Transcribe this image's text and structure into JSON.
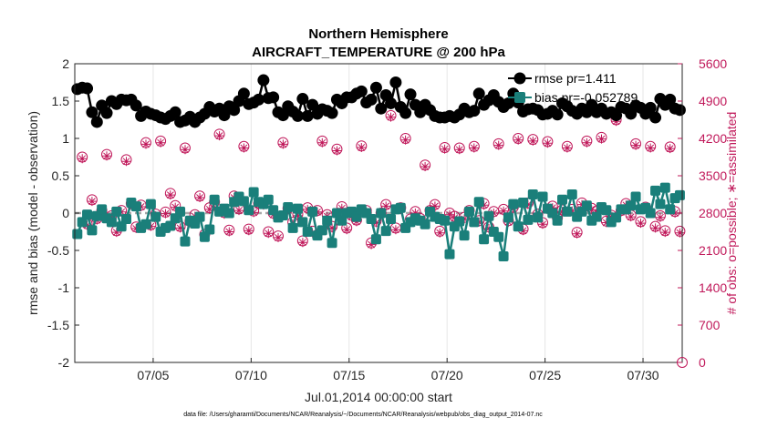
{
  "chart_data": {
    "type": "line",
    "title": "Northern Hemisphere",
    "subtitle": "AIRCRAFT_TEMPERATURE @ 200 hPa",
    "xlabel": "Jul.01,2014 00:00:00 start",
    "ylabel": "rmse and bias (model - observation)",
    "ylabel_right": "# of obs: o=possible; ∗=assimilated",
    "footnote": "data file: /Users/gharamti/Documents/NCAR/Reanalysis/~/Documents/NCAR/Reanalysis/webpub/obs_diag_output_2014-07.nc",
    "xlim": [
      1.0,
      32.0
    ],
    "ylim": [
      -2,
      2
    ],
    "ylim_right": [
      0,
      5600
    ],
    "x_ticks": [
      5,
      10,
      15,
      20,
      25,
      30
    ],
    "x_tick_labels": [
      "07/05",
      "07/10",
      "07/15",
      "07/20",
      "07/25",
      "07/30"
    ],
    "y_ticks": [
      "-2",
      "-1.5",
      "-1",
      "-0.5",
      "0",
      "0.5",
      "1",
      "1.5",
      "2"
    ],
    "y_ticks_right": [
      "0",
      "700",
      "1400",
      "2100",
      "2800",
      "3500",
      "4200",
      "4900",
      "5600"
    ],
    "legend_position": "top-right",
    "colors": {
      "rmse": "#000000",
      "bias": "#1a7f7a",
      "counts": "#c0185a",
      "zero_line": "#a8a8a8"
    },
    "series": [
      {
        "name": "rmse",
        "label": "rmse pr=1.411",
        "axis": "left",
        "x": [
          1.13,
          1.38,
          1.63,
          1.88,
          2.13,
          2.38,
          2.63,
          2.88,
          3.13,
          3.38,
          3.63,
          3.88,
          4.13,
          4.38,
          4.63,
          4.88,
          5.13,
          5.38,
          5.63,
          5.88,
          6.13,
          6.38,
          6.63,
          6.88,
          7.13,
          7.38,
          7.63,
          7.88,
          8.13,
          8.38,
          8.63,
          8.88,
          9.13,
          9.38,
          9.63,
          9.88,
          10.13,
          10.38,
          10.63,
          10.88,
          11.13,
          11.38,
          11.63,
          11.88,
          12.13,
          12.38,
          12.63,
          12.88,
          13.13,
          13.38,
          13.63,
          13.88,
          14.13,
          14.38,
          14.63,
          14.88,
          15.13,
          15.38,
          15.63,
          15.88,
          16.13,
          16.38,
          16.63,
          16.88,
          17.13,
          17.38,
          17.63,
          17.88,
          18.13,
          18.38,
          18.63,
          18.88,
          19.13,
          19.38,
          19.63,
          19.88,
          20.13,
          20.38,
          20.63,
          20.88,
          21.13,
          21.38,
          21.63,
          21.88,
          22.13,
          22.38,
          22.63,
          22.88,
          23.13,
          23.38,
          23.63,
          23.88,
          24.13,
          24.38,
          24.63,
          24.88,
          25.13,
          25.38,
          25.63,
          25.88,
          26.13,
          26.38,
          26.63,
          26.88,
          27.13,
          27.38,
          27.63,
          27.88,
          28.13,
          28.38,
          28.63,
          28.88,
          29.13,
          29.38,
          29.63,
          29.88,
          30.13,
          30.38,
          30.63,
          30.88,
          31.13,
          31.38,
          31.63,
          31.88
        ],
        "values": [
          1.66,
          1.68,
          1.67,
          1.35,
          1.22,
          1.44,
          1.34,
          1.5,
          1.46,
          1.52,
          1.51,
          1.52,
          1.44,
          1.3,
          1.36,
          1.33,
          1.31,
          1.28,
          1.26,
          1.3,
          1.35,
          1.22,
          1.24,
          1.29,
          1.22,
          1.28,
          1.33,
          1.42,
          1.36,
          1.4,
          1.31,
          1.43,
          1.38,
          1.5,
          1.6,
          1.46,
          1.48,
          1.52,
          1.78,
          1.54,
          1.55,
          1.35,
          1.31,
          1.43,
          1.36,
          1.3,
          1.53,
          1.3,
          1.45,
          1.33,
          1.39,
          1.37,
          1.34,
          1.52,
          1.47,
          1.55,
          1.55,
          1.6,
          1.63,
          1.48,
          1.52,
          1.68,
          1.4,
          1.58,
          1.47,
          1.75,
          1.42,
          1.34,
          1.59,
          1.45,
          1.35,
          1.45,
          1.38,
          1.3,
          1.28,
          1.28,
          1.3,
          1.28,
          1.32,
          1.4,
          1.35,
          1.37,
          1.6,
          1.45,
          1.51,
          1.58,
          1.49,
          1.42,
          1.47,
          1.6,
          1.48,
          1.36,
          1.39,
          1.4,
          1.38,
          1.32,
          1.33,
          1.37,
          1.32,
          1.47,
          1.43,
          1.37,
          1.33,
          1.4,
          1.35,
          1.45,
          1.35,
          1.4,
          1.33,
          1.35,
          1.31,
          1.42,
          1.4,
          1.33,
          1.44,
          1.41,
          1.33,
          1.41,
          1.28,
          1.53,
          1.45,
          1.52,
          1.4,
          1.38
        ]
      },
      {
        "name": "bias",
        "label": "bias pr=-0.052789",
        "axis": "left",
        "x": [
          1.13,
          1.38,
          1.63,
          1.88,
          2.13,
          2.38,
          2.63,
          2.88,
          3.13,
          3.38,
          3.63,
          3.88,
          4.13,
          4.38,
          4.63,
          4.88,
          5.13,
          5.38,
          5.63,
          5.88,
          6.13,
          6.38,
          6.63,
          6.88,
          7.13,
          7.38,
          7.63,
          7.88,
          8.13,
          8.38,
          8.63,
          8.88,
          9.13,
          9.38,
          9.63,
          9.88,
          10.13,
          10.38,
          10.63,
          10.88,
          11.13,
          11.38,
          11.63,
          11.88,
          12.13,
          12.38,
          12.63,
          12.88,
          13.13,
          13.38,
          13.63,
          13.88,
          14.13,
          14.38,
          14.63,
          14.88,
          15.13,
          15.38,
          15.63,
          15.88,
          16.13,
          16.38,
          16.63,
          16.88,
          17.13,
          17.38,
          17.63,
          17.88,
          18.13,
          18.38,
          18.63,
          18.88,
          19.13,
          19.38,
          19.63,
          19.88,
          20.13,
          20.38,
          20.63,
          20.88,
          21.13,
          21.38,
          21.63,
          21.88,
          22.13,
          22.38,
          22.63,
          22.88,
          23.13,
          23.38,
          23.63,
          23.88,
          24.13,
          24.38,
          24.63,
          24.88,
          25.13,
          25.38,
          25.63,
          25.88,
          26.13,
          26.38,
          26.63,
          26.88,
          27.13,
          27.38,
          27.63,
          27.88,
          28.13,
          28.38,
          28.63,
          28.88,
          29.13,
          29.38,
          29.63,
          29.88,
          30.13,
          30.38,
          30.63,
          30.88,
          31.13,
          31.38,
          31.63,
          31.88
        ],
        "values": [
          -0.28,
          -0.12,
          -0.02,
          -0.23,
          -0.04,
          0.05,
          -0.07,
          -0.12,
          0.02,
          -0.18,
          -0.08,
          0.14,
          0.09,
          -0.2,
          -0.15,
          0.12,
          -0.05,
          -0.25,
          -0.2,
          -0.17,
          -0.07,
          0.02,
          -0.38,
          -0.1,
          -0.14,
          -0.05,
          -0.32,
          -0.22,
          0.18,
          0.02,
          0.06,
          0.0,
          0.15,
          0.22,
          0.16,
          0.04,
          0.28,
          0.15,
          0.12,
          0.18,
          0.04,
          -0.06,
          -0.03,
          0.08,
          -0.2,
          0.06,
          -0.12,
          -0.25,
          0.02,
          -0.3,
          -0.23,
          -0.1,
          -0.4,
          0.0,
          -0.1,
          0.0,
          0.02,
          -0.05,
          0.05,
          0.0,
          -0.08,
          -0.35,
          0.0,
          -0.24,
          -0.08,
          0.05,
          0.07,
          -0.2,
          -0.12,
          -0.07,
          -0.1,
          -0.15,
          0.02,
          -0.05,
          -0.08,
          -0.1,
          -0.55,
          -0.18,
          -0.11,
          -0.3,
          0.02,
          -0.12,
          0.15,
          -0.35,
          -0.04,
          -0.25,
          -0.32,
          -0.58,
          -0.06,
          0.12,
          -0.18,
          0.14,
          -0.09,
          0.25,
          -0.06,
          0.22,
          0.06,
          0.0,
          -0.1,
          0.18,
          0.02,
          0.25,
          -0.05,
          0.02,
          0.1,
          -0.1,
          -0.05,
          0.08,
          0.04,
          -0.12,
          -0.06,
          0.05,
          0.05,
          0.1,
          0.22,
          0.05,
          0.07,
          0.0,
          0.3,
          0.12,
          0.34,
          0.05,
          0.2,
          0.24
        ]
      },
      {
        "name": "obs_possible",
        "label": "# of obs possible",
        "axis": "right",
        "marker": "o",
        "x": [
          1.38,
          1.63,
          1.88,
          2.13,
          2.38,
          2.63,
          2.88,
          3.13,
          3.38,
          3.63,
          3.88,
          4.13,
          4.38,
          4.63,
          4.88,
          5.13,
          5.38,
          5.63,
          5.88,
          6.13,
          6.38,
          6.63,
          6.88,
          7.13,
          7.38,
          7.63,
          7.88,
          8.13,
          8.38,
          8.63,
          8.88,
          9.13,
          9.38,
          9.63,
          9.88,
          10.13,
          10.38,
          10.63,
          10.88,
          11.13,
          11.38,
          11.63,
          11.88,
          12.13,
          12.38,
          12.63,
          12.88,
          13.13,
          13.38,
          13.63,
          13.88,
          14.13,
          14.38,
          14.63,
          14.88,
          15.13,
          15.38,
          15.63,
          15.88,
          16.13,
          16.38,
          16.63,
          16.88,
          17.13,
          17.38,
          17.63,
          17.88,
          18.13,
          18.38,
          18.63,
          18.88,
          19.13,
          19.38,
          19.63,
          19.88,
          20.13,
          20.38,
          20.63,
          20.88,
          21.13,
          21.38,
          21.63,
          21.88,
          22.13,
          22.38,
          22.63,
          22.88,
          23.13,
          23.38,
          23.63,
          23.88,
          24.13,
          24.38,
          24.63,
          24.88,
          25.13,
          25.38,
          25.63,
          25.88,
          26.13,
          26.38,
          26.63,
          26.88,
          27.13,
          27.38,
          27.63,
          27.88,
          28.13,
          28.38,
          28.63,
          28.88,
          29.13,
          29.38,
          29.63,
          29.88,
          30.13,
          30.38,
          30.63,
          30.88,
          31.13,
          31.38,
          31.63,
          31.88
        ],
        "values": [
          3850,
          2600,
          3050,
          2700,
          2850,
          3900,
          2750,
          2470,
          2850,
          3800,
          2980,
          2540,
          2950,
          4120,
          2580,
          2780,
          4150,
          2820,
          3170,
          2940,
          2550,
          4020,
          2650,
          2770,
          3120,
          2400,
          2900,
          3010,
          4280,
          2810,
          2480,
          3120,
          2880,
          4050,
          2500,
          2840,
          2980,
          2980,
          2450,
          2800,
          2370,
          4120,
          2890,
          2630,
          2780,
          2280,
          2900,
          2460,
          2850,
          4150,
          2770,
          2550,
          4000,
          2920,
          2520,
          2760,
          2670,
          4060,
          2850,
          2240,
          2650,
          2800,
          2960,
          4630,
          2520,
          2900,
          4200,
          2690,
          2830,
          2700,
          3700,
          2850,
          2960,
          2460,
          4030,
          2800,
          2740,
          4020,
          2720,
          2850,
          4050,
          2660,
          2980,
          2540,
          2830,
          4100,
          2870,
          2660,
          2910,
          4200,
          2500,
          2990,
          4180,
          2780,
          2620,
          4140,
          2930,
          2710,
          2860,
          4050,
          2870,
          2440,
          2990,
          4150,
          2890,
          2840,
          4220,
          2650,
          2760,
          4550,
          2850,
          2980,
          2760,
          4100,
          2640,
          2910,
          4050,
          2550,
          2750,
          2470,
          4040,
          2830,
          2460
        ]
      },
      {
        "name": "obs_assimilated",
        "label": "# of obs assimilated",
        "axis": "right",
        "marker": "*",
        "x": [
          1.38,
          1.63,
          1.88,
          2.13,
          2.38,
          2.63,
          2.88,
          3.13,
          3.38,
          3.63,
          3.88,
          4.13,
          4.38,
          4.63,
          4.88,
          5.13,
          5.38,
          5.63,
          5.88,
          6.13,
          6.38,
          6.63,
          6.88,
          7.13,
          7.38,
          7.63,
          7.88,
          8.13,
          8.38,
          8.63,
          8.88,
          9.13,
          9.38,
          9.63,
          9.88,
          10.13,
          10.38,
          10.63,
          10.88,
          11.13,
          11.38,
          11.63,
          11.88,
          12.13,
          12.38,
          12.63,
          12.88,
          13.13,
          13.38,
          13.63,
          13.88,
          14.13,
          14.38,
          14.63,
          14.88,
          15.13,
          15.38,
          15.63,
          15.88,
          16.13,
          16.38,
          16.63,
          16.88,
          17.13,
          17.38,
          17.63,
          17.88,
          18.13,
          18.38,
          18.63,
          18.88,
          19.13,
          19.38,
          19.63,
          19.88,
          20.13,
          20.38,
          20.63,
          20.88,
          21.13,
          21.38,
          21.63,
          21.88,
          22.13,
          22.38,
          22.63,
          22.88,
          23.13,
          23.38,
          23.63,
          23.88,
          24.13,
          24.38,
          24.63,
          24.88,
          25.13,
          25.38,
          25.63,
          25.88,
          26.13,
          26.38,
          26.63,
          26.88,
          27.13,
          27.38,
          27.63,
          27.88,
          28.13,
          28.38,
          28.63,
          28.88,
          29.13,
          29.38,
          29.63,
          29.88,
          30.13,
          30.38,
          30.63,
          30.88,
          31.13,
          31.38,
          31.63,
          31.88
        ],
        "values": [
          3820,
          2570,
          3020,
          2670,
          2820,
          3870,
          2720,
          2440,
          2820,
          3770,
          2950,
          2510,
          2920,
          4090,
          2550,
          2750,
          4120,
          2790,
          3140,
          2910,
          2520,
          3990,
          2620,
          2740,
          3090,
          2370,
          2870,
          2980,
          4250,
          2780,
          2450,
          3090,
          2850,
          4020,
          2470,
          2810,
          2950,
          2950,
          2420,
          2770,
          2340,
          4090,
          2860,
          2600,
          2750,
          2250,
          2870,
          2430,
          2820,
          4120,
          2740,
          2520,
          3970,
          2890,
          2490,
          2730,
          2640,
          4030,
          2820,
          2210,
          2620,
          2770,
          2930,
          4600,
          2490,
          2870,
          4170,
          2660,
          2800,
          2670,
          3670,
          2820,
          2930,
          2430,
          4000,
          2770,
          2710,
          3990,
          2690,
          2820,
          4020,
          2630,
          2950,
          2510,
          2800,
          4070,
          2840,
          2630,
          2880,
          4170,
          2470,
          2960,
          4150,
          2750,
          2590,
          4110,
          2900,
          2680,
          2830,
          4020,
          2840,
          2410,
          2960,
          4120,
          2860,
          2810,
          4190,
          2620,
          2730,
          4520,
          2820,
          2950,
          2730,
          4070,
          2610,
          2880,
          4020,
          2520,
          2720,
          2440,
          4010,
          2800,
          2430
        ]
      }
    ]
  }
}
